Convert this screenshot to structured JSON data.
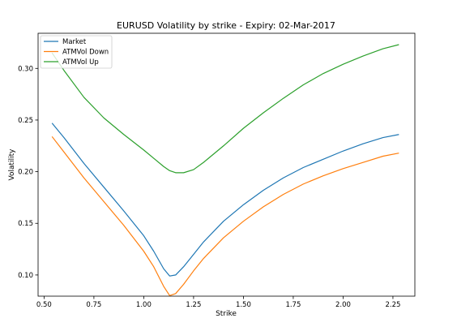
{
  "chart_data": {
    "type": "line",
    "title": "EURUSD  Volatility by strike - Expiry: 02-Mar-2017",
    "xlabel": "Strike",
    "ylabel": "Volatility",
    "xlim": [
      0.47,
      2.36
    ],
    "ylim": [
      0.0795,
      0.334
    ],
    "xticks": [
      0.5,
      0.75,
      1.0,
      1.25,
      1.5,
      1.75,
      2.0,
      2.25
    ],
    "xtick_labels": [
      "0.50",
      "0.75",
      "1.00",
      "1.25",
      "1.50",
      "1.75",
      "2.00",
      "2.25"
    ],
    "yticks": [
      0.1,
      0.15,
      0.2,
      0.25,
      0.3
    ],
    "ytick_labels": [
      "0.10",
      "0.15",
      "0.20",
      "0.25",
      "0.30"
    ],
    "grid": false,
    "legend_position": "top-left",
    "x": [
      0.54,
      0.6,
      0.7,
      0.8,
      0.9,
      1.0,
      1.05,
      1.1,
      1.13,
      1.16,
      1.2,
      1.25,
      1.3,
      1.4,
      1.5,
      1.6,
      1.7,
      1.8,
      1.9,
      2.0,
      2.1,
      2.2,
      2.28
    ],
    "series": [
      {
        "name": "Market",
        "color": "#1f77b4",
        "values": [
          0.247,
          0.233,
          0.208,
          0.185,
          0.162,
          0.138,
          0.123,
          0.106,
          0.099,
          0.1,
          0.108,
          0.12,
          0.132,
          0.152,
          0.168,
          0.182,
          0.194,
          0.204,
          0.212,
          0.22,
          0.227,
          0.233,
          0.236
        ]
      },
      {
        "name": "ATMVol Down",
        "color": "#ff7f0e",
        "values": [
          0.234,
          0.219,
          0.194,
          0.171,
          0.148,
          0.123,
          0.108,
          0.089,
          0.08,
          0.082,
          0.091,
          0.104,
          0.116,
          0.136,
          0.152,
          0.166,
          0.178,
          0.188,
          0.196,
          0.203,
          0.209,
          0.215,
          0.218
        ]
      },
      {
        "name": "ATMVol Up",
        "color": "#2ca02c",
        "values": [
          0.315,
          0.298,
          0.272,
          0.252,
          0.236,
          0.221,
          0.213,
          0.205,
          0.201,
          0.199,
          0.199,
          0.202,
          0.209,
          0.225,
          0.242,
          0.257,
          0.271,
          0.284,
          0.295,
          0.304,
          0.312,
          0.319,
          0.323
        ]
      }
    ]
  }
}
